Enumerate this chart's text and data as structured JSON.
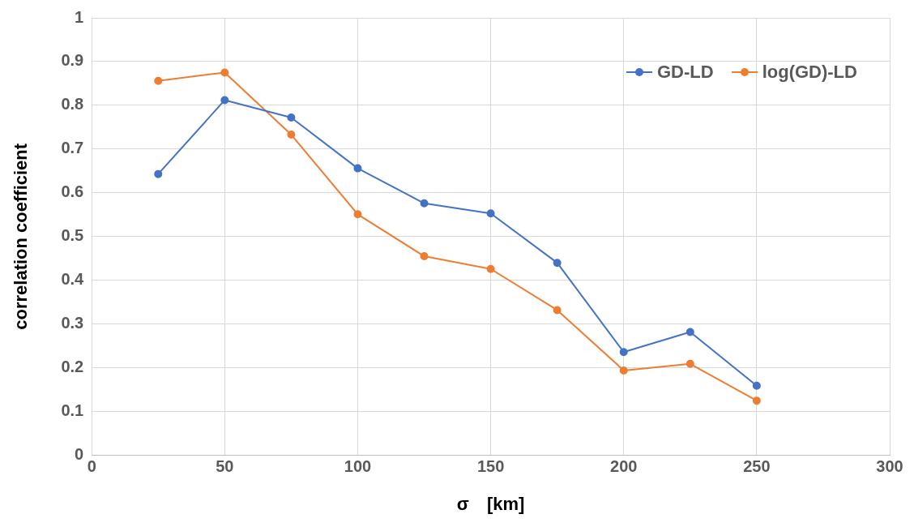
{
  "chart_data": {
    "type": "line",
    "xlabel": "σ　[km]",
    "ylabel": "correlation coefficient",
    "x": [
      25,
      50,
      75,
      100,
      125,
      150,
      175,
      200,
      225,
      250
    ],
    "series": [
      {
        "name": "GD-LD",
        "color": "#4472c4",
        "values": [
          0.643,
          0.812,
          0.772,
          0.656,
          0.576,
          0.553,
          0.44,
          0.236,
          0.282,
          0.159
        ]
      },
      {
        "name": "log(GD)-LD",
        "color": "#ed7d31",
        "values": [
          0.856,
          0.875,
          0.733,
          0.551,
          0.455,
          0.426,
          0.332,
          0.194,
          0.209,
          0.125
        ]
      }
    ],
    "xlim": [
      0,
      300
    ],
    "xticks": [
      0,
      50,
      100,
      150,
      200,
      250,
      300
    ],
    "ylim": [
      0,
      1
    ],
    "yticks": [
      0,
      0.1,
      0.2,
      0.3,
      0.4,
      0.5,
      0.6,
      0.7,
      0.8,
      0.9,
      1
    ],
    "grid": true,
    "legend": "top right",
    "marker": "circle",
    "line_style": "solid"
  }
}
